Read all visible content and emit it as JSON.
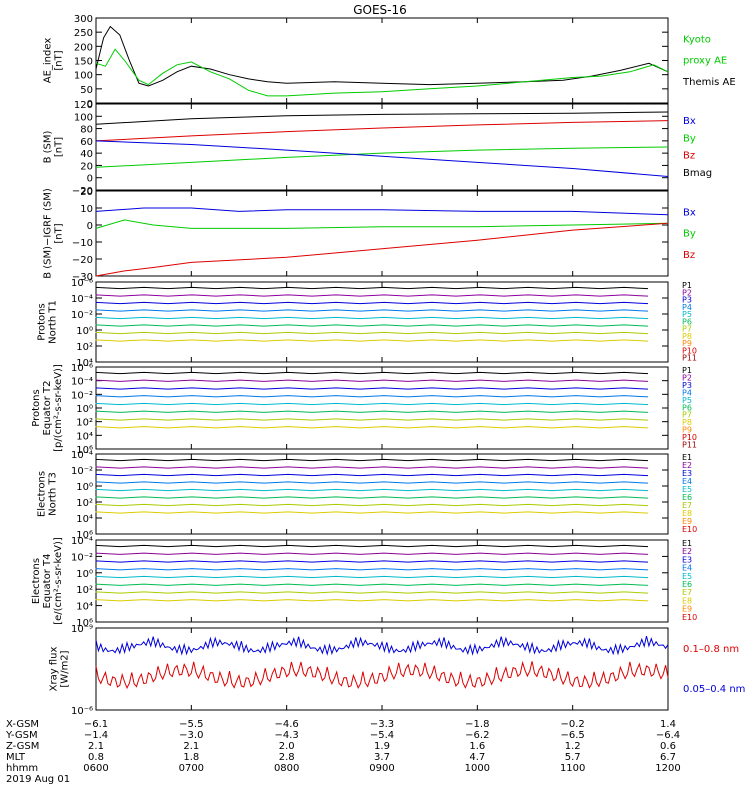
{
  "title": "GOES-16",
  "colors": {
    "black": "#000000",
    "green": "#00cc00",
    "blue": "#0000dd",
    "red": "#dd0000",
    "bright_green": "#22cc22"
  },
  "chart_data": [
    {
      "id": "ae",
      "type": "line",
      "ylabel": [
        "AE_index",
        "[nT]"
      ],
      "ylim": [
        0,
        300
      ],
      "yticks": [
        "0",
        "50",
        "100",
        "150",
        "200",
        "250",
        "300"
      ],
      "legend": [
        {
          "text": "Kyoto",
          "color": "#00cc00"
        },
        {
          "text": "proxy AE",
          "color": "#00cc00"
        },
        {
          "text": "Themis AE",
          "color": "#000000"
        }
      ],
      "series": [
        {
          "name": "Themis AE",
          "color": "#000000",
          "x": [
            6.0,
            6.08,
            6.15,
            6.25,
            6.35,
            6.45,
            6.55,
            6.7,
            6.85,
            7.0,
            7.2,
            7.4,
            7.6,
            7.8,
            8.0,
            8.5,
            9.0,
            9.5,
            10.0,
            10.5,
            10.9,
            11.2,
            11.5,
            11.8,
            12.0
          ],
          "y": [
            120,
            230,
            270,
            240,
            150,
            70,
            60,
            80,
            110,
            130,
            120,
            100,
            85,
            75,
            70,
            75,
            70,
            65,
            70,
            75,
            80,
            95,
            115,
            140,
            110
          ]
        },
        {
          "name": "Kyoto proxy AE",
          "color": "#00cc00",
          "x": [
            6.0,
            6.1,
            6.2,
            6.3,
            6.45,
            6.55,
            6.7,
            6.85,
            7.0,
            7.2,
            7.4,
            7.6,
            7.8,
            8.0,
            8.5,
            9.0,
            9.5,
            10.0,
            10.5,
            11.0,
            11.3,
            11.6,
            11.85,
            12.0
          ],
          "y": [
            140,
            130,
            190,
            150,
            80,
            65,
            105,
            135,
            145,
            110,
            85,
            45,
            25,
            25,
            35,
            40,
            50,
            60,
            75,
            90,
            95,
            110,
            135,
            110
          ]
        }
      ]
    },
    {
      "id": "bsm",
      "type": "line",
      "ylabel": [
        "B (SM)",
        "[nT]"
      ],
      "ylim": [
        -20,
        120
      ],
      "yticks": [
        "−20",
        "0",
        "20",
        "40",
        "60",
        "80",
        "100",
        "120"
      ],
      "legend": [
        {
          "text": "Bx",
          "color": "#0000dd"
        },
        {
          "text": "By",
          "color": "#00cc00"
        },
        {
          "text": "Bz",
          "color": "#dd0000"
        },
        {
          "text": "Bmag",
          "color": "#000000"
        }
      ],
      "series": [
        {
          "name": "Bmag",
          "color": "#000000",
          "x": [
            6,
            7,
            8,
            9,
            10,
            11,
            12
          ],
          "y": [
            87,
            96,
            101,
            103,
            104,
            105,
            107
          ]
        },
        {
          "name": "Bz",
          "color": "#dd0000",
          "x": [
            6,
            7,
            8,
            9,
            10,
            11,
            12
          ],
          "y": [
            60,
            68,
            75,
            81,
            86,
            90,
            93
          ]
        },
        {
          "name": "By",
          "color": "#00cc00",
          "x": [
            6,
            7,
            8,
            9,
            10,
            11,
            12
          ],
          "y": [
            17,
            25,
            33,
            40,
            45,
            48,
            50
          ]
        },
        {
          "name": "Bx",
          "color": "#0000dd",
          "x": [
            6,
            7,
            8,
            9,
            10,
            11,
            12
          ],
          "y": [
            60,
            54,
            45,
            35,
            25,
            15,
            2
          ]
        }
      ]
    },
    {
      "id": "bdiff",
      "type": "line",
      "ylabel": [
        "B (SM)−IGRF (SM)",
        "[nT]"
      ],
      "ylim": [
        -30,
        20
      ],
      "yticks": [
        "−30",
        "−20",
        "−10",
        "0",
        "10",
        "20"
      ],
      "legend": [
        {
          "text": "Bx",
          "color": "#0000dd"
        },
        {
          "text": "By",
          "color": "#00cc00"
        },
        {
          "text": "Bz",
          "color": "#dd0000"
        }
      ],
      "series": [
        {
          "name": "Bx",
          "color": "#0000dd",
          "x": [
            6,
            6.5,
            7,
            7.5,
            8,
            9,
            10,
            11,
            12
          ],
          "y": [
            8,
            10,
            10,
            8,
            9,
            9,
            8,
            8,
            6
          ]
        },
        {
          "name": "By",
          "color": "#00cc00",
          "x": [
            6,
            6.3,
            6.6,
            7,
            7.5,
            8,
            9,
            10,
            11,
            12
          ],
          "y": [
            -2,
            3,
            0,
            -2,
            -2,
            -2,
            -1,
            -1,
            0,
            1
          ]
        },
        {
          "name": "Bz",
          "color": "#dd0000",
          "x": [
            6,
            6.3,
            6.6,
            7,
            8,
            9,
            10,
            11,
            12
          ],
          "y": [
            -30,
            -27,
            -25,
            -22,
            -19,
            -14,
            -9,
            -3,
            1
          ]
        }
      ]
    }
  ],
  "flux_panels": [
    {
      "id": "protons-north",
      "ylabel": [
        "Protons",
        "North T1"
      ],
      "yticks": [
        "10⁴",
        "10²",
        "10⁰",
        "10⁻²",
        "10⁻⁴",
        "10⁻⁶"
      ],
      "legend": [
        "P1",
        "P2",
        "P3",
        "P4",
        "P5",
        "P6",
        "P7",
        "P8",
        "P9",
        "P10",
        "P11"
      ]
    },
    {
      "id": "protons-equator",
      "ylabel": [
        "Protons",
        "Equator T2",
        "[p/(cm²-s-sr-keV)]"
      ],
      "yticks": [
        "10⁶",
        "10⁴",
        "10²",
        "10⁰",
        "10⁻²",
        "10⁻⁴",
        "10⁻⁶"
      ],
      "legend": [
        "P1",
        "P2",
        "P3",
        "P4",
        "P5",
        "P6",
        "P7",
        "P8",
        "P9",
        "P10",
        "P11"
      ]
    },
    {
      "id": "electrons-north",
      "ylabel": [
        "Electrons",
        "North T3"
      ],
      "yticks": [
        "10⁶",
        "10⁴",
        "10²",
        "10⁰",
        "10⁻²",
        "10⁻⁴"
      ],
      "legend": [
        "E1",
        "E2",
        "E3",
        "E4",
        "E5",
        "E6",
        "E7",
        "E8",
        "E9",
        "E10"
      ]
    },
    {
      "id": "electrons-equator",
      "ylabel": [
        "Electrons",
        "Equator T4",
        "[e/(cm²-s-sr-keV)]"
      ],
      "yticks": [
        "10⁶",
        "10⁴",
        "10²",
        "10⁰",
        "10⁻²",
        "10⁻⁴"
      ],
      "legend": [
        "E1",
        "E2",
        "E3",
        "E4",
        "E5",
        "E6",
        "E7",
        "E8",
        "E9",
        "E10"
      ]
    }
  ],
  "xray_panel": {
    "ylabel": [
      "Xray flux",
      "[W/m2]"
    ],
    "yticks": [
      "10⁻⁶",
      "10⁻⁹"
    ],
    "legend": [
      {
        "text": "0.1–0.8 nm",
        "color": "#dd0000"
      },
      {
        "text": "0.05–0.4 nm",
        "color": "#0000dd"
      }
    ]
  },
  "x_axis": {
    "range_hours": [
      6,
      12
    ],
    "row_labels": [
      "X-GSM",
      "Y-GSM",
      "Z-GSM",
      "MLT",
      "hhmm"
    ],
    "columns": [
      {
        "values": [
          "−6.1",
          "−1.4",
          "2.1",
          "0.8",
          "0600"
        ]
      },
      {
        "values": [
          "−5.5",
          "−3.0",
          "2.1",
          "1.8",
          "0700"
        ]
      },
      {
        "values": [
          "−4.6",
          "−4.3",
          "2.0",
          "2.8",
          "0800"
        ]
      },
      {
        "values": [
          "−3.3",
          "−5.4",
          "1.9",
          "3.7",
          "0900"
        ]
      },
      {
        "values": [
          "−1.8",
          "−6.2",
          "1.6",
          "4.7",
          "1000"
        ]
      },
      {
        "values": [
          "−0.2",
          "−6.5",
          "1.2",
          "5.7",
          "1100"
        ]
      },
      {
        "values": [
          "1.4",
          "−6.4",
          "0.6",
          "6.7",
          "1200"
        ]
      }
    ],
    "date": "2019 Aug 01"
  }
}
